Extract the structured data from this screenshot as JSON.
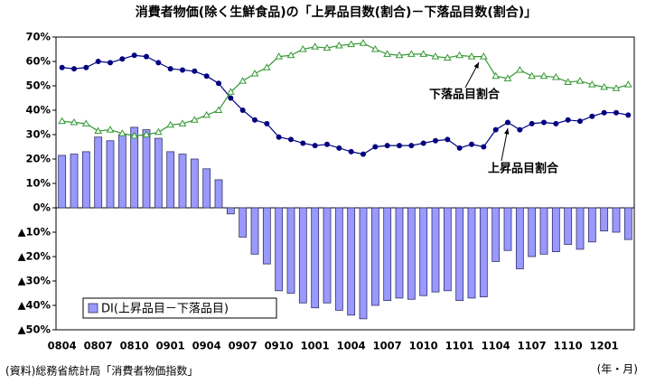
{
  "chart_data": {
    "type": "bar",
    "title": "消費者物価(除く生鮮食品)の「上昇品目数(割合)－下落品目数(割合)」",
    "x_label": "(年・月)",
    "source": "(資料)総務省統計局「消費者物価指数」",
    "categories": [
      "0804",
      null,
      null,
      "0807",
      null,
      null,
      "0810",
      null,
      null,
      "0901",
      null,
      null,
      "0904",
      null,
      null,
      "0907",
      null,
      null,
      "0910",
      null,
      null,
      "1001",
      null,
      null,
      "1004",
      null,
      null,
      "1007",
      null,
      null,
      "1010",
      null,
      null,
      "1101",
      null,
      null,
      "1104",
      null,
      null,
      "1107",
      null,
      null,
      "1110",
      null,
      null,
      "1201",
      null,
      null
    ],
    "ylim": [
      -50,
      70
    ],
    "yticks": [
      {
        "value": -50,
        "label": "▲50%"
      },
      {
        "value": -40,
        "label": "▲40%"
      },
      {
        "value": -30,
        "label": "▲30%"
      },
      {
        "value": -20,
        "label": "▲20%"
      },
      {
        "value": -10,
        "label": "▲10%"
      },
      {
        "value": 0,
        "label": "0%"
      },
      {
        "value": 10,
        "label": "10%"
      },
      {
        "value": 20,
        "label": "20%"
      },
      {
        "value": 30,
        "label": "30%"
      },
      {
        "value": 40,
        "label": "40%"
      },
      {
        "value": 50,
        "label": "50%"
      },
      {
        "value": 60,
        "label": "60%"
      },
      {
        "value": 70,
        "label": "70%"
      }
    ],
    "grid": false,
    "legend": "lower left",
    "series": [
      {
        "name": "DI(上昇品目－下落品目)",
        "type": "bar",
        "color": "#9999ff",
        "show_in_legend": true,
        "values": [
          21.5,
          22,
          23,
          29,
          27.5,
          30,
          33,
          32,
          28.5,
          23,
          22,
          20,
          16,
          11.5,
          -2.5,
          -12,
          -19,
          -23,
          -34,
          -35,
          -39,
          -41,
          -39,
          -42,
          -44,
          -45.5,
          -40,
          -38,
          -37,
          -37.5,
          -36,
          -34.5,
          -34,
          -38,
          -37,
          -36.5,
          -22,
          -17.5,
          -25,
          -20,
          -19,
          -18,
          -15,
          -17,
          -14,
          -9.5,
          -10,
          -13
        ]
      },
      {
        "name": "上昇品目割合",
        "type": "line",
        "color": "#000080",
        "marker": "circle",
        "show_in_legend": false,
        "values": [
          57.5,
          57,
          57.5,
          60,
          59.5,
          61,
          62.5,
          62,
          59.5,
          57,
          56.5,
          56,
          54,
          51,
          45,
          40,
          36,
          34.5,
          29,
          28,
          26.5,
          25.5,
          26,
          24.5,
          23,
          22,
          25,
          25.5,
          25.5,
          25.5,
          26.5,
          27.5,
          28,
          24.5,
          26,
          25,
          32,
          35,
          32,
          34.5,
          35,
          34.5,
          36,
          35.5,
          37.5,
          39,
          39,
          38
        ]
      },
      {
        "name": "下落品目割合",
        "type": "line",
        "color": "#339933",
        "marker": "triangle",
        "show_in_legend": false,
        "values": [
          35.5,
          35,
          34.5,
          31.5,
          32,
          30.5,
          29.5,
          30,
          31,
          34,
          34.5,
          36,
          38,
          40,
          47.5,
          52,
          55,
          57.5,
          62,
          62.5,
          65,
          66,
          65.5,
          66.5,
          67,
          67.5,
          65,
          63,
          62.5,
          63,
          63,
          62,
          61.5,
          62.5,
          62,
          62,
          54,
          53,
          56.5,
          54,
          54,
          53.5,
          51.5,
          52,
          50.5,
          49.5,
          49,
          50.5
        ]
      }
    ]
  }
}
